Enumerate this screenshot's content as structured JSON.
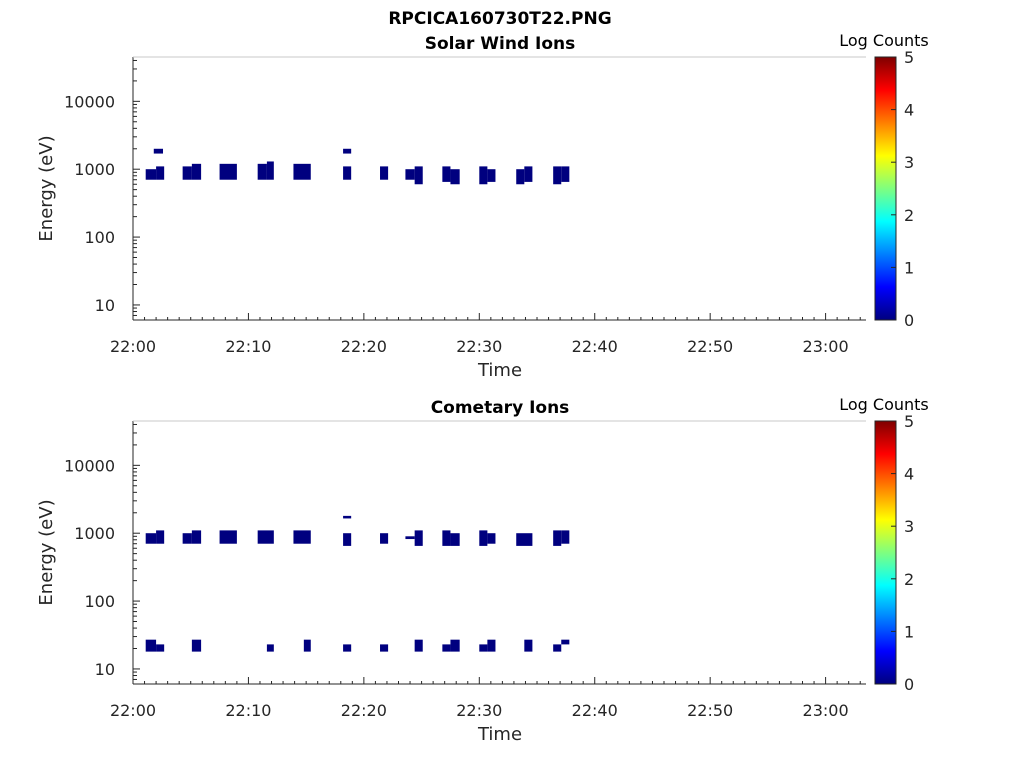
{
  "figure_title": "RPCICA160730T22.PNG",
  "colors": {
    "data": "#00007f",
    "axis": "#262626",
    "colormap": [
      "#00007f",
      "#0000ff",
      "#007fff",
      "#00ffff",
      "#7fff7f",
      "#ffff00",
      "#ff7f00",
      "#ff0000",
      "#7f0000"
    ]
  },
  "chart_data": [
    {
      "type": "heatmap",
      "title": "Solar Wind Ions",
      "xlabel": "Time",
      "ylabel": "Energy (eV)",
      "x_ticks": [
        "22:00",
        "22:10",
        "22:20",
        "22:30",
        "22:40",
        "22:50",
        "23:00"
      ],
      "xlim_minutes_after_2200": [
        0,
        63.5
      ],
      "y_scale": "log",
      "y_ticks": [
        "10",
        "100",
        "1000",
        "10000"
      ],
      "ylim": [
        6,
        45000
      ],
      "colorbar": {
        "label": "Log Counts",
        "ticks": [
          "0",
          "1",
          "2",
          "3",
          "4",
          "5"
        ],
        "range": [
          0,
          5
        ]
      },
      "grid": false,
      "bins": [
        {
          "t0": 1.1,
          "t1": 2.0,
          "e0": 700,
          "e1": 1000,
          "v": 0
        },
        {
          "t0": 2.0,
          "t1": 2.7,
          "e0": 700,
          "e1": 1100,
          "v": 0
        },
        {
          "t0": 1.8,
          "t1": 2.6,
          "e0": 1700,
          "e1": 2000,
          "v": 0
        },
        {
          "t0": 4.3,
          "t1": 5.1,
          "e0": 700,
          "e1": 1100,
          "v": 0
        },
        {
          "t0": 5.1,
          "t1": 5.9,
          "e0": 700,
          "e1": 1200,
          "v": 0
        },
        {
          "t0": 7.5,
          "t1": 9.0,
          "e0": 700,
          "e1": 1200,
          "v": 0
        },
        {
          "t0": 10.8,
          "t1": 11.6,
          "e0": 700,
          "e1": 1200,
          "v": 0
        },
        {
          "t0": 11.6,
          "t1": 12.2,
          "e0": 700,
          "e1": 1300,
          "v": 0
        },
        {
          "t0": 13.9,
          "t1": 15.4,
          "e0": 700,
          "e1": 1200,
          "v": 0
        },
        {
          "t0": 18.2,
          "t1": 18.9,
          "e0": 700,
          "e1": 1100,
          "v": 0
        },
        {
          "t0": 18.2,
          "t1": 18.9,
          "e0": 1700,
          "e1": 2000,
          "v": 0
        },
        {
          "t0": 21.4,
          "t1": 22.1,
          "e0": 700,
          "e1": 1100,
          "v": 0
        },
        {
          "t0": 23.6,
          "t1": 24.4,
          "e0": 700,
          "e1": 1000,
          "v": 0
        },
        {
          "t0": 24.4,
          "t1": 25.1,
          "e0": 600,
          "e1": 1100,
          "v": 0
        },
        {
          "t0": 26.8,
          "t1": 27.5,
          "e0": 650,
          "e1": 1100,
          "v": 0
        },
        {
          "t0": 27.5,
          "t1": 28.3,
          "e0": 600,
          "e1": 1000,
          "v": 0
        },
        {
          "t0": 30.0,
          "t1": 30.7,
          "e0": 600,
          "e1": 1100,
          "v": 0
        },
        {
          "t0": 30.7,
          "t1": 31.4,
          "e0": 650,
          "e1": 1000,
          "v": 0
        },
        {
          "t0": 33.2,
          "t1": 33.9,
          "e0": 600,
          "e1": 1000,
          "v": 0
        },
        {
          "t0": 33.9,
          "t1": 34.6,
          "e0": 650,
          "e1": 1100,
          "v": 0
        },
        {
          "t0": 36.4,
          "t1": 37.1,
          "e0": 600,
          "e1": 1100,
          "v": 0
        },
        {
          "t0": 37.1,
          "t1": 37.8,
          "e0": 650,
          "e1": 1100,
          "v": 0
        }
      ]
    },
    {
      "type": "heatmap",
      "title": "Cometary Ions",
      "xlabel": "Time",
      "ylabel": "Energy (eV)",
      "x_ticks": [
        "22:00",
        "22:10",
        "22:20",
        "22:30",
        "22:40",
        "22:50",
        "23:00"
      ],
      "xlim_minutes_after_2200": [
        0,
        63.5
      ],
      "y_scale": "log",
      "y_ticks": [
        "10",
        "100",
        "1000",
        "10000"
      ],
      "ylim": [
        6,
        45000
      ],
      "colorbar": {
        "label": "Log Counts",
        "ticks": [
          "0",
          "1",
          "2",
          "3",
          "4",
          "5"
        ],
        "range": [
          0,
          5
        ]
      },
      "grid": false,
      "bins": [
        {
          "t0": 1.1,
          "t1": 2.0,
          "e0": 700,
          "e1": 1000,
          "v": 0
        },
        {
          "t0": 2.0,
          "t1": 2.7,
          "e0": 700,
          "e1": 1100,
          "v": 0
        },
        {
          "t0": 4.3,
          "t1": 5.1,
          "e0": 700,
          "e1": 1000,
          "v": 0
        },
        {
          "t0": 5.1,
          "t1": 5.9,
          "e0": 700,
          "e1": 1100,
          "v": 0
        },
        {
          "t0": 7.5,
          "t1": 9.0,
          "e0": 700,
          "e1": 1100,
          "v": 0
        },
        {
          "t0": 10.8,
          "t1": 12.2,
          "e0": 700,
          "e1": 1100,
          "v": 0
        },
        {
          "t0": 13.9,
          "t1": 15.4,
          "e0": 700,
          "e1": 1100,
          "v": 0
        },
        {
          "t0": 18.2,
          "t1": 18.9,
          "e0": 650,
          "e1": 1000,
          "v": 0
        },
        {
          "t0": 18.2,
          "t1": 18.9,
          "e0": 1650,
          "e1": 1800,
          "v": 0
        },
        {
          "t0": 21.4,
          "t1": 22.1,
          "e0": 700,
          "e1": 1000,
          "v": 0
        },
        {
          "t0": 23.6,
          "t1": 24.4,
          "e0": 820,
          "e1": 900,
          "v": 0
        },
        {
          "t0": 24.4,
          "t1": 25.1,
          "e0": 650,
          "e1": 1100,
          "v": 0
        },
        {
          "t0": 26.8,
          "t1": 27.5,
          "e0": 650,
          "e1": 1100,
          "v": 0
        },
        {
          "t0": 27.5,
          "t1": 28.3,
          "e0": 650,
          "e1": 1000,
          "v": 0
        },
        {
          "t0": 30.0,
          "t1": 30.7,
          "e0": 650,
          "e1": 1100,
          "v": 0
        },
        {
          "t0": 30.7,
          "t1": 31.4,
          "e0": 700,
          "e1": 1000,
          "v": 0
        },
        {
          "t0": 33.2,
          "t1": 34.6,
          "e0": 650,
          "e1": 1000,
          "v": 0
        },
        {
          "t0": 36.4,
          "t1": 37.1,
          "e0": 650,
          "e1": 1100,
          "v": 0
        },
        {
          "t0": 37.1,
          "t1": 37.8,
          "e0": 700,
          "e1": 1100,
          "v": 0
        },
        {
          "t0": 1.1,
          "t1": 2.0,
          "e0": 18,
          "e1": 27,
          "v": 0
        },
        {
          "t0": 2.0,
          "t1": 2.7,
          "e0": 18,
          "e1": 23,
          "v": 0
        },
        {
          "t0": 5.1,
          "t1": 5.9,
          "e0": 18,
          "e1": 27,
          "v": 0
        },
        {
          "t0": 11.6,
          "t1": 12.2,
          "e0": 18,
          "e1": 23,
          "v": 0
        },
        {
          "t0": 14.8,
          "t1": 15.4,
          "e0": 18,
          "e1": 27,
          "v": 0
        },
        {
          "t0": 18.2,
          "t1": 18.9,
          "e0": 18,
          "e1": 23,
          "v": 0
        },
        {
          "t0": 21.4,
          "t1": 22.1,
          "e0": 18,
          "e1": 23,
          "v": 0
        },
        {
          "t0": 24.4,
          "t1": 25.1,
          "e0": 18,
          "e1": 27,
          "v": 0
        },
        {
          "t0": 26.8,
          "t1": 27.5,
          "e0": 18,
          "e1": 23,
          "v": 0
        },
        {
          "t0": 27.5,
          "t1": 28.3,
          "e0": 18,
          "e1": 27,
          "v": 0
        },
        {
          "t0": 30.0,
          "t1": 30.7,
          "e0": 18,
          "e1": 23,
          "v": 0
        },
        {
          "t0": 30.7,
          "t1": 31.4,
          "e0": 18,
          "e1": 27,
          "v": 0
        },
        {
          "t0": 33.9,
          "t1": 34.6,
          "e0": 18,
          "e1": 27,
          "v": 0
        },
        {
          "t0": 36.4,
          "t1": 37.1,
          "e0": 18,
          "e1": 23,
          "v": 0
        },
        {
          "t0": 37.1,
          "t1": 37.8,
          "e0": 23,
          "e1": 27,
          "v": 0
        }
      ]
    }
  ]
}
